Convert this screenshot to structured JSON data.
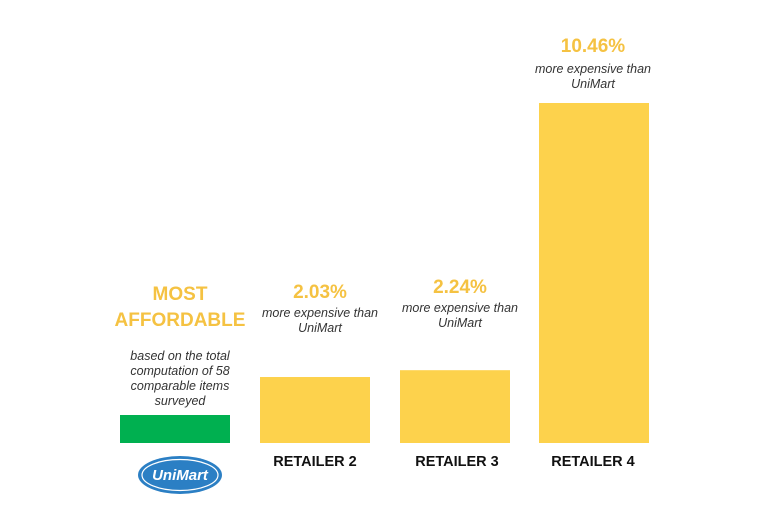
{
  "chart_data": {
    "type": "bar",
    "categories": [
      "UniMart",
      "RETAILER 2",
      "RETAILER 3",
      "RETAILER 4"
    ],
    "values": [
      0,
      2.03,
      2.24,
      10.46
    ],
    "value_labels": [
      "",
      "2.03%",
      "2.24%",
      "10.46%"
    ],
    "comparison_note": "more expensive than UniMart",
    "baseline": {
      "headline_line1": "MOST",
      "headline_line2": "AFFORDABLE",
      "note_lines": [
        "based on the total",
        "computation of 58",
        "comparable items",
        "surveyed"
      ],
      "logo_text": "UniMart"
    },
    "ylim": [
      0,
      10.46
    ],
    "grid": false,
    "colors": {
      "bar": "#fdd24c",
      "baseline_bar": "#00b050",
      "label": "#f5c242"
    }
  }
}
